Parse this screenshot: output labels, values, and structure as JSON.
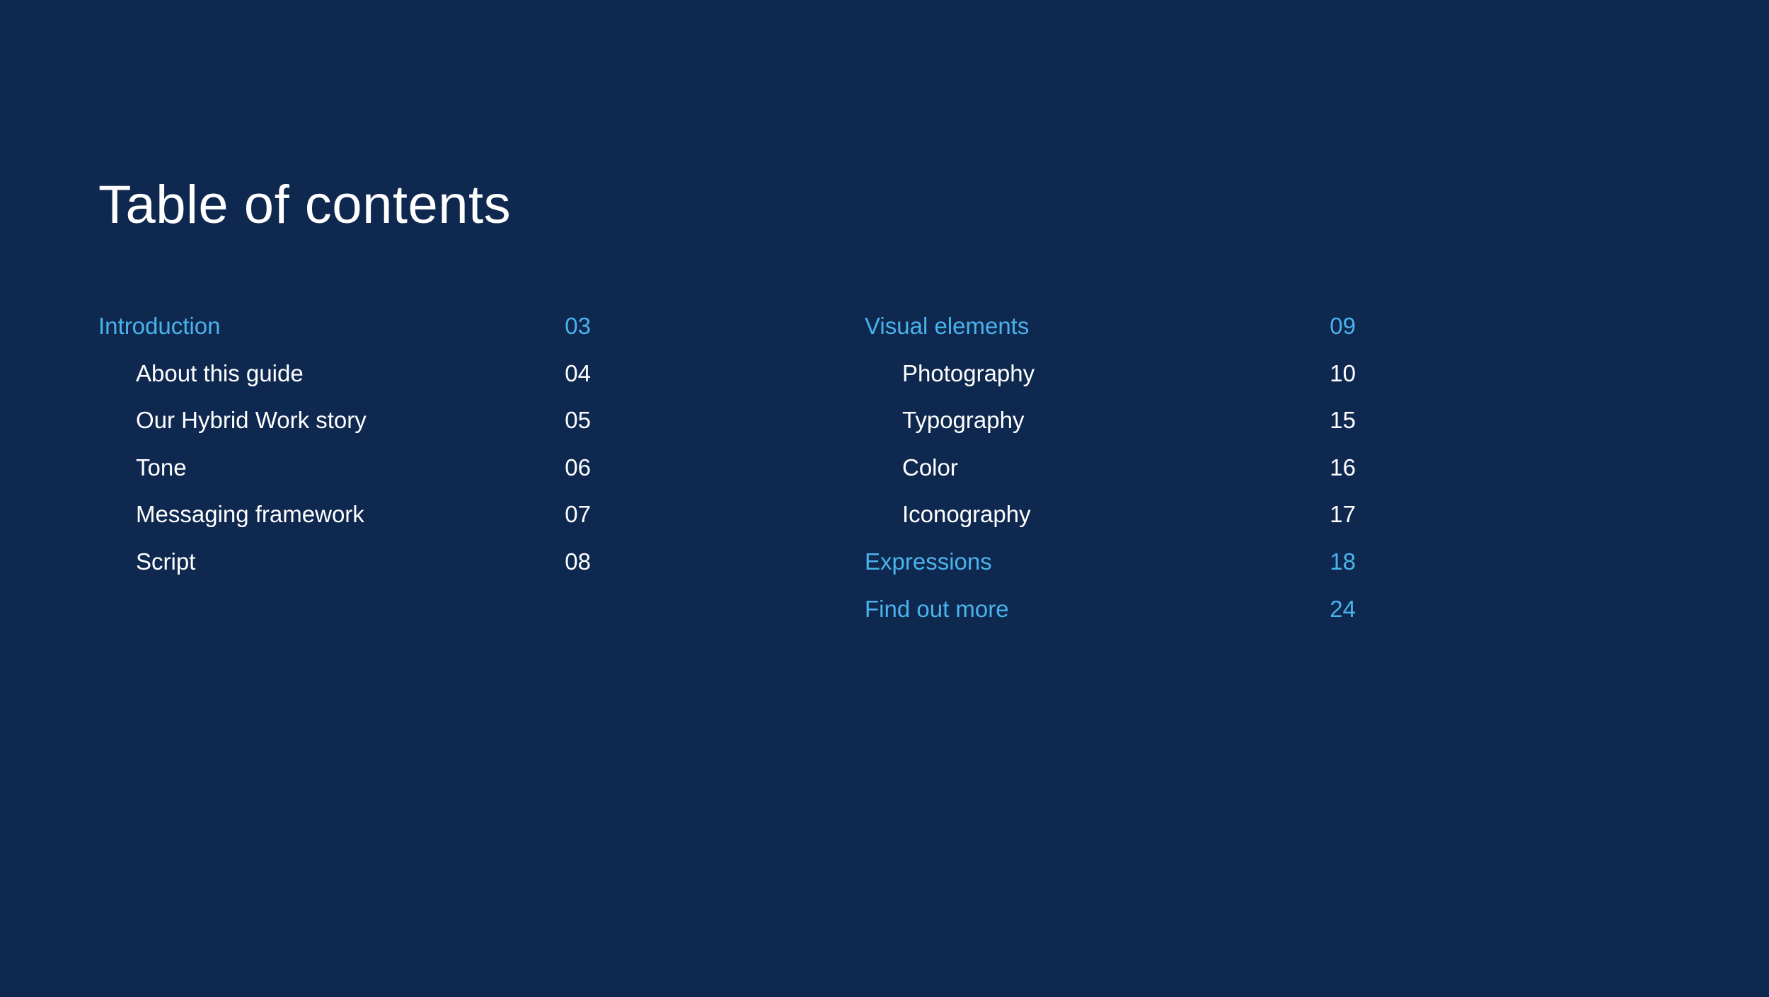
{
  "title": "Table of contents",
  "colors": {
    "background": "#0e284f",
    "section": "#4ab3ec",
    "text": "#ffffff"
  },
  "toc": {
    "left": [
      {
        "label": "Introduction",
        "page": "03",
        "level": "section"
      },
      {
        "label": "About this guide",
        "page": "04",
        "level": "sub"
      },
      {
        "label": "Our Hybrid Work story",
        "page": "05",
        "level": "sub"
      },
      {
        "label": "Tone",
        "page": "06",
        "level": "sub"
      },
      {
        "label": "Messaging framework",
        "page": "07",
        "level": "sub"
      },
      {
        "label": "Script",
        "page": "08",
        "level": "sub"
      }
    ],
    "right": [
      {
        "label": "Visual elements",
        "page": "09",
        "level": "section"
      },
      {
        "label": "Photography",
        "page": "10",
        "level": "sub"
      },
      {
        "label": "Typography",
        "page": "15",
        "level": "sub"
      },
      {
        "label": "Color",
        "page": "16",
        "level": "sub"
      },
      {
        "label": "Iconography",
        "page": "17",
        "level": "sub"
      },
      {
        "label": "Expressions",
        "page": "18",
        "level": "section"
      },
      {
        "label": "Find out more",
        "page": "24",
        "level": "section"
      }
    ]
  }
}
